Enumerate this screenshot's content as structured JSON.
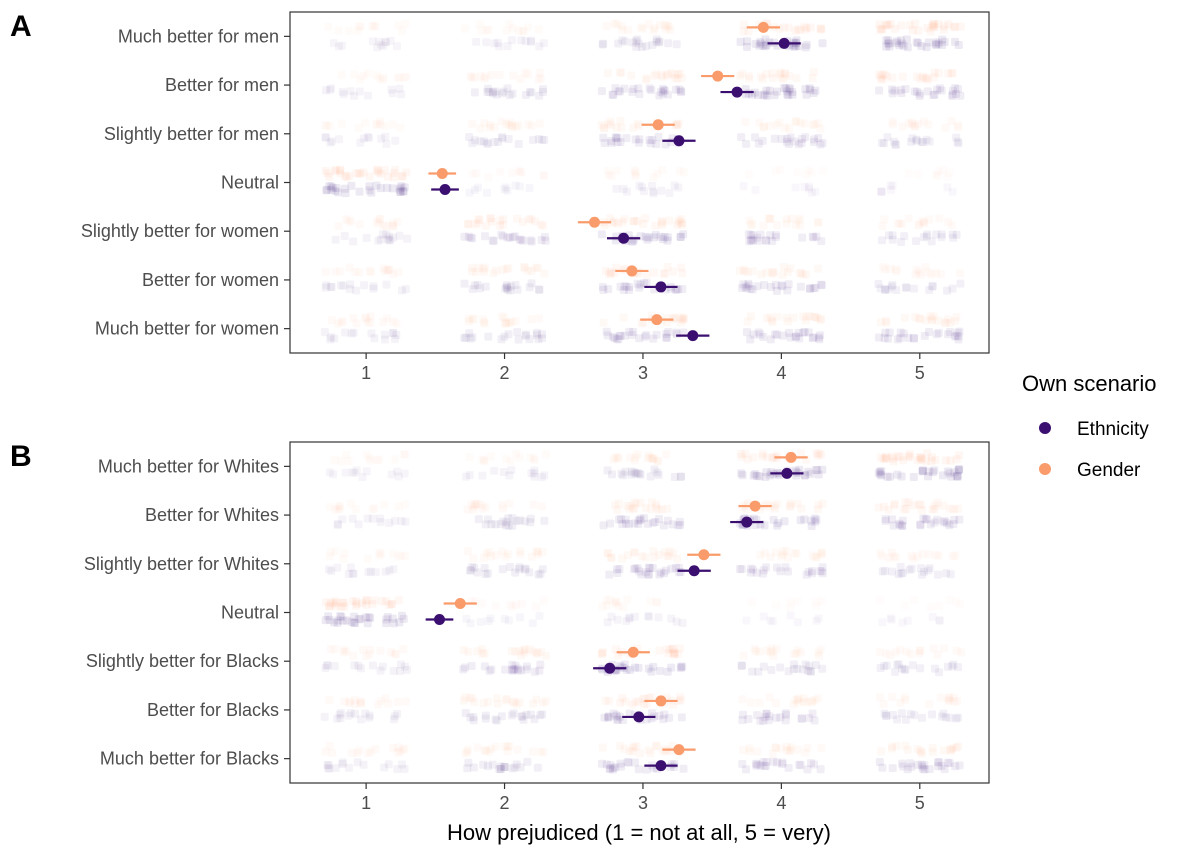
{
  "colors": {
    "ethnicity": "#3b0f70",
    "gender": "#f99b6b",
    "ethnicity_jitter": "#5b3f91",
    "gender_jitter": "#fbb38e"
  },
  "legend": {
    "title": "Own scenario",
    "entries": [
      {
        "label": "Ethnicity",
        "color": "#3b0f70"
      },
      {
        "label": "Gender",
        "color": "#f99b6b"
      }
    ]
  },
  "chart_data": [
    {
      "type": "scatter",
      "panel": "A",
      "xlabel": "How prejudiced (1 = not at all, 5 = very)",
      "xlim": [
        0.45,
        5.5
      ],
      "xticks": [
        1,
        2,
        3,
        4,
        5
      ],
      "categories": [
        "Much better for men",
        "Better for men",
        "Slightly better for men",
        "Neutral",
        "Slightly better for women",
        "Better for women",
        "Much better for women"
      ],
      "series": [
        {
          "name": "Ethnicity",
          "means": [
            4.02,
            3.68,
            3.26,
            1.57,
            2.86,
            3.13,
            3.36
          ],
          "ci": [
            0.12,
            0.12,
            0.12,
            0.1,
            0.12,
            0.12,
            0.12
          ],
          "density": [
            [
              0.25,
              0.3,
              0.6,
              1.0,
              1.0
            ],
            [
              0.3,
              0.6,
              0.8,
              1.0,
              0.8
            ],
            [
              0.3,
              0.5,
              0.8,
              0.7,
              0.5
            ],
            [
              1.0,
              0.2,
              0.3,
              0.1,
              0.1
            ],
            [
              0.4,
              0.7,
              0.9,
              0.7,
              0.5
            ],
            [
              0.4,
              0.6,
              0.8,
              0.8,
              0.5
            ],
            [
              0.4,
              0.6,
              0.8,
              0.8,
              0.8
            ]
          ]
        },
        {
          "name": "Gender",
          "means": [
            3.87,
            3.54,
            3.11,
            1.55,
            2.65,
            2.92,
            3.1
          ],
          "ci": [
            0.12,
            0.12,
            0.12,
            0.1,
            0.12,
            0.12,
            0.12
          ],
          "density": [
            [
              0.25,
              0.3,
              0.5,
              0.7,
              1.0
            ],
            [
              0.3,
              0.4,
              0.6,
              0.6,
              0.7
            ],
            [
              0.3,
              0.5,
              0.6,
              0.5,
              0.4
            ],
            [
              1.0,
              0.2,
              0.3,
              0.1,
              0.1
            ],
            [
              0.4,
              0.7,
              0.8,
              0.5,
              0.4
            ],
            [
              0.4,
              0.6,
              0.7,
              0.6,
              0.4
            ],
            [
              0.4,
              0.5,
              0.6,
              0.6,
              0.6
            ]
          ]
        }
      ]
    },
    {
      "type": "scatter",
      "panel": "B",
      "xlabel": "How prejudiced (1 = not at all, 5 = very)",
      "xlim": [
        0.45,
        5.5
      ],
      "xticks": [
        1,
        2,
        3,
        4,
        5
      ],
      "categories": [
        "Much better for Whites",
        "Better for Whites",
        "Slightly better for Whites",
        "Neutral",
        "Slightly better for Blacks",
        "Better for Blacks",
        "Much better for Blacks"
      ],
      "series": [
        {
          "name": "Ethnicity",
          "means": [
            4.04,
            3.75,
            3.37,
            1.53,
            2.76,
            2.97,
            3.13
          ],
          "ci": [
            0.12,
            0.12,
            0.12,
            0.1,
            0.12,
            0.12,
            0.12
          ],
          "density": [
            [
              0.25,
              0.3,
              0.6,
              1.0,
              1.0
            ],
            [
              0.3,
              0.6,
              0.8,
              0.9,
              0.8
            ],
            [
              0.3,
              0.6,
              0.8,
              0.7,
              0.5
            ],
            [
              1.0,
              0.2,
              0.3,
              0.1,
              0.1
            ],
            [
              0.4,
              0.7,
              0.9,
              0.6,
              0.5
            ],
            [
              0.4,
              0.6,
              0.8,
              0.7,
              0.5
            ],
            [
              0.4,
              0.6,
              0.8,
              0.7,
              0.8
            ]
          ]
        },
        {
          "name": "Gender",
          "means": [
            4.07,
            3.81,
            3.44,
            1.68,
            2.93,
            3.13,
            3.26
          ],
          "ci": [
            0.12,
            0.12,
            0.12,
            0.12,
            0.12,
            0.12,
            0.12
          ],
          "density": [
            [
              0.25,
              0.3,
              0.5,
              0.7,
              1.0
            ],
            [
              0.3,
              0.4,
              0.6,
              0.6,
              0.7
            ],
            [
              0.3,
              0.5,
              0.6,
              0.5,
              0.4
            ],
            [
              1.0,
              0.2,
              0.3,
              0.1,
              0.1
            ],
            [
              0.4,
              0.6,
              0.7,
              0.5,
              0.4
            ],
            [
              0.4,
              0.6,
              0.7,
              0.5,
              0.4
            ],
            [
              0.4,
              0.5,
              0.6,
              0.5,
              0.6
            ]
          ]
        }
      ]
    }
  ]
}
